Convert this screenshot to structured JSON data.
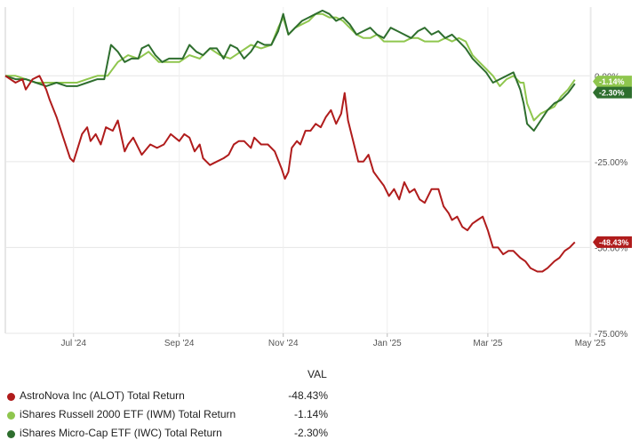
{
  "chart_data": {
    "type": "line",
    "title": "",
    "xlabel": "",
    "ylabel": "",
    "ylim": [
      -75,
      20
    ],
    "yticks": [
      {
        "value": 0,
        "label": "0.00%"
      },
      {
        "value": -25,
        "label": "-25.00%"
      },
      {
        "value": -50,
        "label": "-50.00%"
      },
      {
        "value": -75,
        "label": "-75.00%"
      }
    ],
    "xlim": [
      0,
      334
    ],
    "xticks": [
      {
        "value": 40,
        "label": "Jul '24"
      },
      {
        "value": 102,
        "label": "Sep '24"
      },
      {
        "value": 163,
        "label": "Nov '24"
      },
      {
        "value": 224,
        "label": "Jan '25"
      },
      {
        "value": 283,
        "label": "Mar '25"
      },
      {
        "value": 343,
        "label": "May '25"
      }
    ],
    "series": [
      {
        "name": "AstroNova Inc (ALOT) Total Return",
        "color": "#b01c1c",
        "final_label": "-48.43%",
        "x": [
          0,
          6,
          10,
          12,
          16,
          20,
          24,
          26,
          30,
          34,
          38,
          40,
          45,
          48,
          50,
          53,
          56,
          59,
          63,
          66,
          70,
          72,
          75,
          80,
          85,
          89,
          93,
          97,
          102,
          105,
          108,
          111,
          114,
          116,
          120,
          124,
          128,
          131,
          134,
          137,
          140,
          144,
          146,
          150,
          154,
          158,
          162,
          164,
          166,
          168,
          171,
          173,
          176,
          179,
          182,
          185,
          188,
          191,
          194,
          197,
          199,
          201,
          204,
          207,
          210,
          213,
          216,
          219,
          222,
          225,
          228,
          231,
          234,
          237,
          240,
          243,
          246,
          250,
          254,
          257,
          260,
          262,
          265,
          268,
          271,
          274,
          277,
          280,
          283,
          286,
          289,
          292,
          295,
          298,
          302,
          305,
          308,
          312,
          315,
          318,
          322,
          325,
          328,
          331,
          334
        ],
        "values": [
          0,
          -2,
          -1,
          -4,
          -1,
          0,
          -4,
          -7,
          -12,
          -18,
          -24,
          -25,
          -17,
          -15,
          -19,
          -17,
          -20,
          -15,
          -16,
          -13,
          -22,
          -20,
          -18,
          -23,
          -20,
          -21,
          -20,
          -17,
          -19,
          -17,
          -18,
          -22,
          -20,
          -24,
          -26,
          -25,
          -24,
          -23,
          -20,
          -19,
          -19,
          -21,
          -18,
          -20,
          -20,
          -22,
          -27,
          -30,
          -28,
          -21,
          -19,
          -20,
          -16,
          -16,
          -14,
          -15,
          -12,
          -10,
          -14,
          -11,
          -5,
          -13,
          -19,
          -25,
          -25,
          -23,
          -28,
          -30,
          -32,
          -35,
          -33,
          -36,
          -31,
          -34,
          -33,
          -36,
          -37,
          -33,
          -33,
          -38,
          -40,
          -42,
          -41,
          -44,
          -45,
          -43,
          -42,
          -41,
          -45,
          -50,
          -50,
          -52,
          -51,
          -51,
          -53,
          -54,
          -56,
          -57,
          -57,
          -56,
          -54,
          -53,
          -51,
          -50,
          -48.43
        ]
      },
      {
        "name": "iShares Russell 2000 ETF (IWM) Total Return",
        "color": "#8fc64e",
        "final_label": "-1.14%",
        "x": [
          0,
          6,
          12,
          18,
          24,
          30,
          36,
          42,
          48,
          54,
          60,
          66,
          72,
          78,
          84,
          90,
          96,
          102,
          108,
          114,
          120,
          126,
          132,
          138,
          144,
          150,
          156,
          160,
          163,
          166,
          170,
          174,
          178,
          182,
          186,
          190,
          194,
          198,
          202,
          206,
          210,
          214,
          218,
          222,
          226,
          230,
          234,
          238,
          242,
          246,
          250,
          254,
          258,
          262,
          266,
          270,
          274,
          278,
          282,
          286,
          290,
          294,
          298,
          302,
          304,
          306,
          310,
          314,
          318,
          322,
          326,
          330,
          334
        ],
        "values": [
          0,
          0,
          -1,
          -2,
          -2,
          -2,
          -2,
          -2,
          -1,
          0,
          0,
          4,
          6,
          5,
          7,
          4,
          4,
          4,
          6,
          5,
          8,
          6,
          5,
          7,
          9,
          8,
          9,
          14,
          17,
          12,
          14,
          15,
          16,
          18,
          18,
          17,
          17,
          16,
          14,
          12,
          11,
          11,
          12,
          10,
          10,
          10,
          10,
          11,
          11,
          10,
          10,
          10,
          11,
          10,
          11,
          10,
          6,
          4,
          2,
          0,
          -3,
          -1,
          0,
          -2,
          -2,
          -8,
          -13,
          -11,
          -10,
          -9,
          -6,
          -4,
          -1.14
        ]
      },
      {
        "name": "iShares Micro-Cap ETF (IWC) Total Return",
        "color": "#2e6e2e",
        "final_label": "-2.30%",
        "x": [
          0,
          6,
          12,
          18,
          24,
          30,
          36,
          42,
          48,
          54,
          58,
          60,
          62,
          66,
          70,
          74,
          78,
          80,
          84,
          88,
          92,
          96,
          100,
          104,
          108,
          112,
          116,
          120,
          124,
          128,
          132,
          136,
          140,
          144,
          148,
          152,
          156,
          160,
          163,
          166,
          170,
          174,
          178,
          182,
          186,
          190,
          194,
          198,
          202,
          206,
          210,
          214,
          218,
          222,
          226,
          230,
          234,
          238,
          242,
          246,
          250,
          254,
          258,
          262,
          266,
          270,
          274,
          278,
          282,
          286,
          290,
          294,
          298,
          302,
          304,
          306,
          308,
          310,
          314,
          318,
          322,
          326,
          330,
          334
        ],
        "values": [
          0,
          -1,
          -1,
          -2,
          -3,
          -2,
          -3,
          -3,
          -2,
          -1,
          -1,
          4,
          9,
          7,
          4,
          5,
          5,
          8,
          9,
          6,
          4,
          5,
          5,
          5,
          9,
          7,
          6,
          8,
          8,
          5,
          9,
          8,
          5,
          7,
          10,
          9,
          9,
          13,
          18,
          12,
          14,
          16,
          17,
          18,
          19,
          18,
          16,
          17,
          15,
          12,
          13,
          14,
          12,
          11,
          14,
          13,
          12,
          11,
          13,
          14,
          12,
          13,
          11,
          12,
          10,
          8,
          5,
          3,
          1,
          -2,
          -1,
          0,
          1,
          -4,
          -8,
          -14,
          -15,
          -16,
          -13,
          -10,
          -8,
          -7,
          -5,
          -2.3
        ]
      }
    ],
    "legend": {
      "value_header": "VAL",
      "entries": [
        {
          "name": "AstroNova Inc (ALOT) Total Return",
          "value": "-48.43%",
          "color": "#b01c1c"
        },
        {
          "name": "iShares Russell 2000 ETF (IWM) Total Return",
          "value": "-1.14%",
          "color": "#8fc64e"
        },
        {
          "name": "iShares Micro-Cap ETF (IWC) Total Return",
          "value": "-2.30%",
          "color": "#2e6e2e"
        }
      ]
    }
  }
}
